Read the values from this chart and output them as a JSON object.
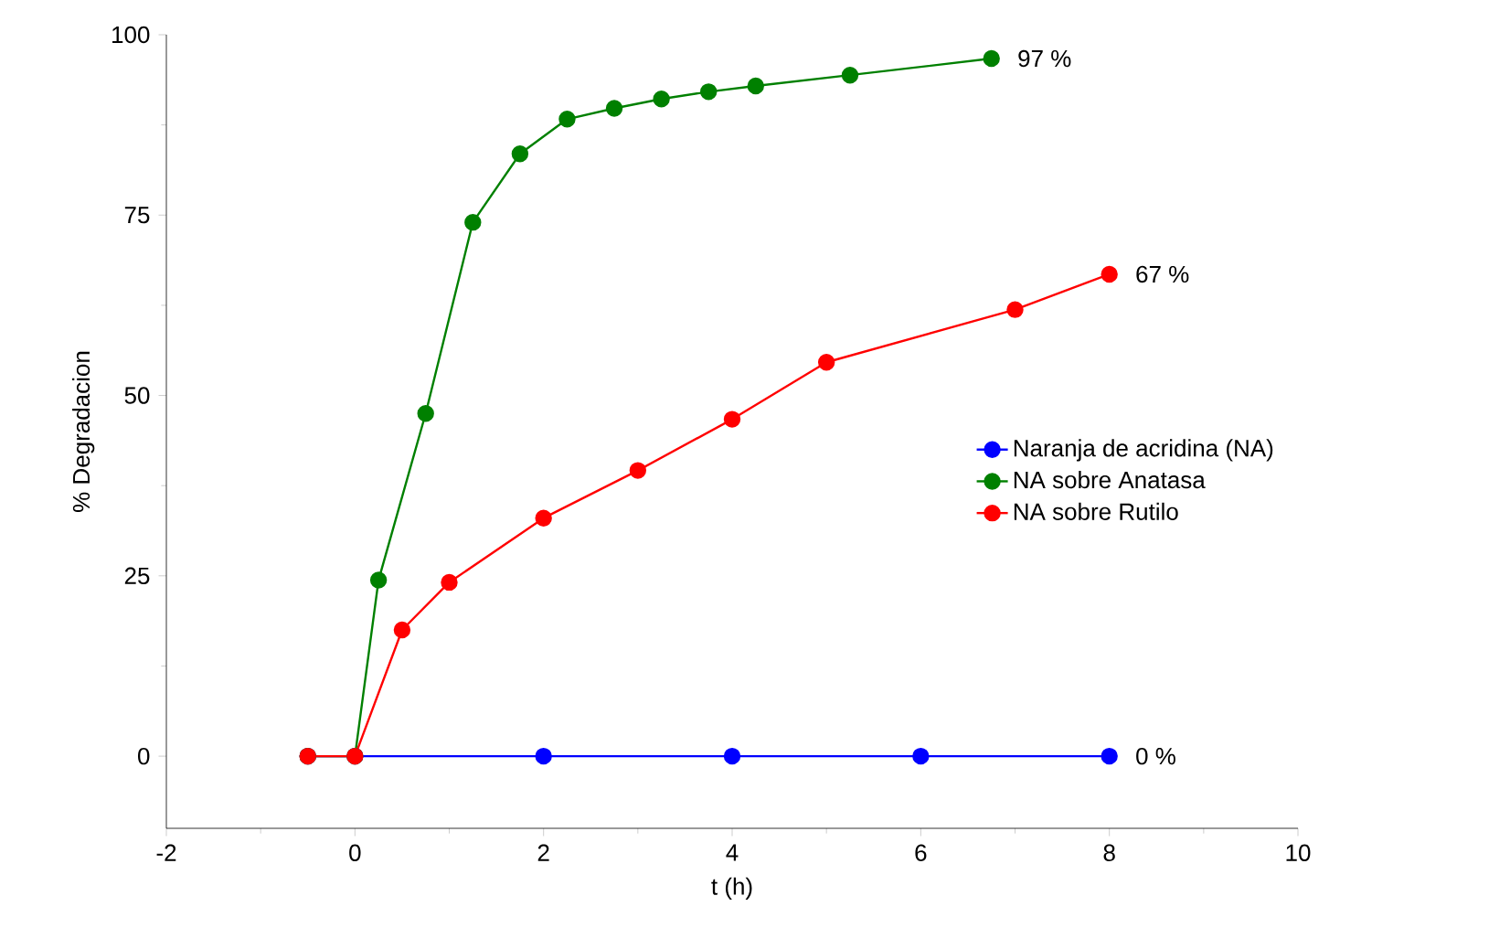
{
  "chart_data": {
    "type": "line",
    "xlabel": "t (h)",
    "ylabel": "% Degradacion",
    "xlim": [
      -2,
      10
    ],
    "ylim": [
      -10,
      100
    ],
    "xticks": [
      -2,
      0,
      2,
      4,
      6,
      8,
      10
    ],
    "yticks": [
      0,
      25,
      50,
      75,
      100
    ],
    "marker": "circle",
    "line_style": "solid",
    "legend": "right",
    "grid": false,
    "series": [
      {
        "name": "Naranja de acridina (NA)",
        "color": "#0000ff",
        "x": [
          -0.5,
          0,
          2,
          4,
          6,
          8
        ],
        "values": [
          0,
          0,
          0,
          0,
          0,
          0
        ]
      },
      {
        "name": "NA sobre Anatasa",
        "color": "#008000",
        "x": [
          -0.5,
          0,
          0.25,
          0.75,
          1.25,
          1.75,
          2.25,
          2.75,
          3.25,
          3.75,
          4.25,
          5.25,
          6.75
        ],
        "values": [
          0,
          0,
          24.4,
          47.5,
          74,
          83.5,
          88.3,
          89.8,
          91.1,
          92.1,
          92.9,
          94.4,
          96.7
        ]
      },
      {
        "name": "NA sobre Rutilo",
        "color": "#ff0000",
        "x": [
          -0.5,
          0,
          0.5,
          1,
          2,
          3,
          4,
          5,
          7,
          8
        ],
        "values": [
          0,
          0,
          17.5,
          24.1,
          33,
          39.6,
          46.7,
          54.6,
          61.9,
          66.8
        ]
      }
    ],
    "annotations": [
      "0 %",
      "97 %",
      "67 %"
    ]
  }
}
